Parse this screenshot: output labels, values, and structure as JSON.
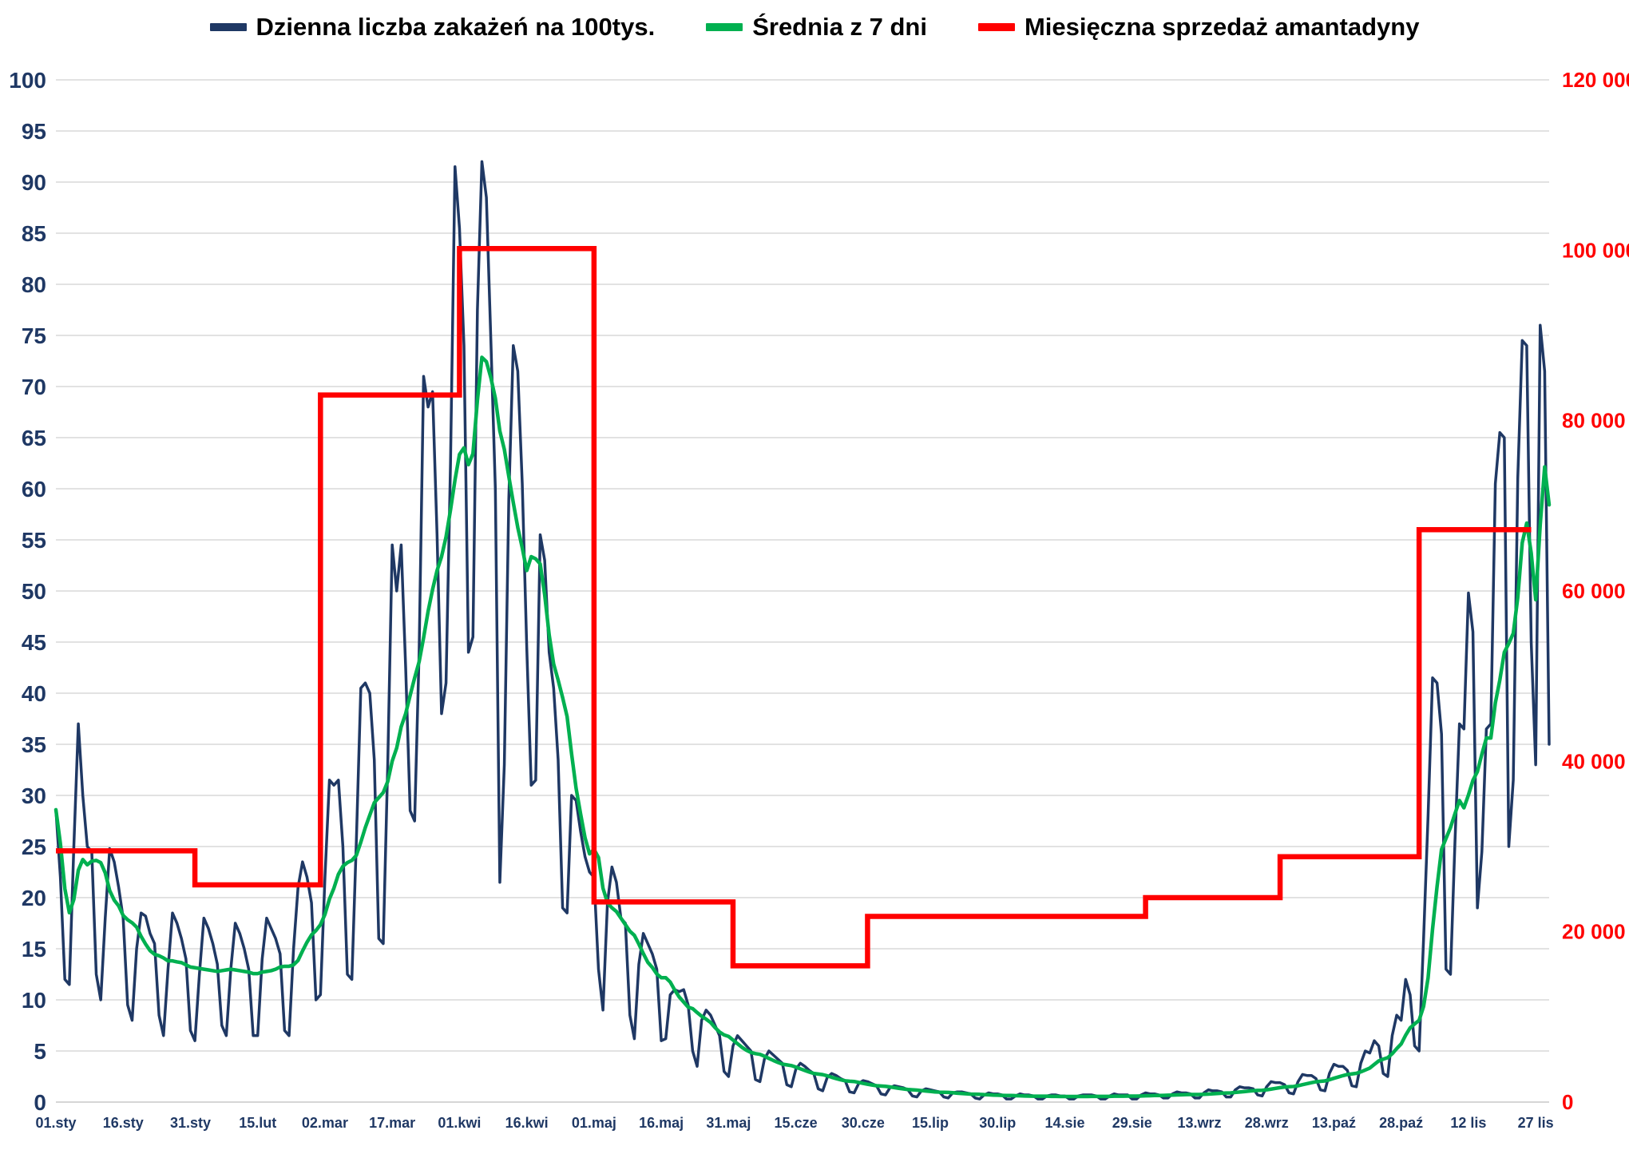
{
  "legend": {
    "items": [
      {
        "label": "Dzienna liczba zakażeń na 100tys.",
        "color": "#1f3864"
      },
      {
        "label": "Średnia z 7 dni",
        "color": "#00b050"
      },
      {
        "label": "Miesięczna sprzedaż amantadyny",
        "color": "#ff0000"
      }
    ]
  },
  "chart_data": {
    "type": "line",
    "title": "",
    "grid": true,
    "background": "#ffffff",
    "gridline_color": "#d9d9d9",
    "left_axis": {
      "min": 0,
      "max": 100,
      "step": 5,
      "ticks": [
        0,
        5,
        10,
        15,
        20,
        25,
        30,
        35,
        40,
        45,
        50,
        55,
        60,
        65,
        70,
        75,
        80,
        85,
        90,
        95,
        100
      ],
      "color": "#1f3864"
    },
    "right_axis": {
      "min": 0,
      "max": 120000,
      "step": 20000,
      "ticks": [
        {
          "value": 0,
          "label": "0"
        },
        {
          "value": 20000,
          "label": "20 000"
        },
        {
          "value": 40000,
          "label": "40 000"
        },
        {
          "value": 60000,
          "label": "60 000"
        },
        {
          "value": 80000,
          "label": "80 000"
        },
        {
          "value": 100000,
          "label": "100 000"
        },
        {
          "value": 120000,
          "label": "120 000"
        }
      ],
      "color": "#ff0000"
    },
    "x_axis": {
      "labels": [
        "01.sty",
        "16.sty",
        "31.sty",
        "15.lut",
        "02.mar",
        "17.mar",
        "01.kwi",
        "16.kwi",
        "01.maj",
        "16.maj",
        "31.maj",
        "15.cze",
        "30.cze",
        "15.lip",
        "30.lip",
        "14.sie",
        "29.sie",
        "13.wrz",
        "28.wrz",
        "13.paź",
        "28.paź",
        "12 lis",
        "27 lis"
      ],
      "days": [
        1,
        16,
        31,
        46,
        61,
        76,
        91,
        106,
        121,
        136,
        151,
        166,
        181,
        196,
        211,
        226,
        241,
        256,
        271,
        286,
        301,
        316,
        331
      ],
      "color": "#1f3864"
    },
    "series": [
      {
        "name": "Dzienna liczba zakażeń na 100tys.",
        "axis": "left",
        "color": "#1f3864",
        "kind": "daily-line",
        "values": [
          28.6,
          22.0,
          12.0,
          11.5,
          25.0,
          37.0,
          30.0,
          25.0,
          24.5,
          12.5,
          10.0,
          18.0,
          24.8,
          23.5,
          21.0,
          18.0,
          9.5,
          8.0,
          15.0,
          18.5,
          18.2,
          16.5,
          15.5,
          8.5,
          6.5,
          13.0,
          18.5,
          17.5,
          16.0,
          14.0,
          7.0,
          6.0,
          12.5,
          18.0,
          17.0,
          15.5,
          13.5,
          7.5,
          6.5,
          13.0,
          17.5,
          16.5,
          15.0,
          13.0,
          6.5,
          6.5,
          14.0,
          18.0,
          17.0,
          16.0,
          14.5,
          7.0,
          6.5,
          15.0,
          21.0,
          23.5,
          22.0,
          19.5,
          10.0,
          10.5,
          22.0,
          31.5,
          31.0,
          31.5,
          25.0,
          12.5,
          12.0,
          25.5,
          40.5,
          41.0,
          40.0,
          33.5,
          16.0,
          15.5,
          33.0,
          54.5,
          50.0,
          54.5,
          42.5,
          28.5,
          27.5,
          44.0,
          71.0,
          68.0,
          69.5,
          55.5,
          38.0,
          41.0,
          62.5,
          91.5,
          85.5,
          74.0,
          44.0,
          45.5,
          77.5,
          92.0,
          88.5,
          74.5,
          60.0,
          21.5,
          33.0,
          59.0,
          74.0,
          71.5,
          60.5,
          44.5,
          31.0,
          31.5,
          55.5,
          53.0,
          44.0,
          40.5,
          33.5,
          19.0,
          18.5,
          30.0,
          29.5,
          26.5,
          24.0,
          22.5,
          22.0,
          13.0,
          9.0,
          19.5,
          23.0,
          21.5,
          18.0,
          17.5,
          8.5,
          6.2,
          13.5,
          16.5,
          15.5,
          14.5,
          13.0,
          6.0,
          6.2,
          10.5,
          11.0,
          10.8,
          11.0,
          9.5,
          5.0,
          3.5,
          8.0,
          9.0,
          8.5,
          7.5,
          6.5,
          3.0,
          2.5,
          5.5,
          6.5,
          6.0,
          5.5,
          5.0,
          2.2,
          2.0,
          4.2,
          5.0,
          4.6,
          4.2,
          3.8,
          1.7,
          1.5,
          3.2,
          3.8,
          3.5,
          3.1,
          2.8,
          1.3,
          1.1,
          2.4,
          2.8,
          2.6,
          2.3,
          2.1,
          1.0,
          0.9,
          1.8,
          2.1,
          2.0,
          1.8,
          1.6,
          0.8,
          0.7,
          1.4,
          1.6,
          1.5,
          1.4,
          1.2,
          0.6,
          0.5,
          1.1,
          1.3,
          1.2,
          1.1,
          1.0,
          0.5,
          0.4,
          0.9,
          1.0,
          1.0,
          0.9,
          0.8,
          0.4,
          0.3,
          0.7,
          0.9,
          0.8,
          0.8,
          0.7,
          0.3,
          0.3,
          0.6,
          0.8,
          0.7,
          0.7,
          0.6,
          0.3,
          0.3,
          0.6,
          0.7,
          0.7,
          0.6,
          0.6,
          0.3,
          0.3,
          0.6,
          0.7,
          0.7,
          0.7,
          0.6,
          0.3,
          0.3,
          0.6,
          0.8,
          0.7,
          0.7,
          0.7,
          0.3,
          0.3,
          0.7,
          0.9,
          0.8,
          0.8,
          0.7,
          0.4,
          0.4,
          0.8,
          1.0,
          0.9,
          0.9,
          0.8,
          0.4,
          0.4,
          0.9,
          1.2,
          1.1,
          1.1,
          1.0,
          0.5,
          0.5,
          1.2,
          1.5,
          1.4,
          1.4,
          1.3,
          0.7,
          0.6,
          1.5,
          2.0,
          1.9,
          1.9,
          1.7,
          0.9,
          0.8,
          2.0,
          2.7,
          2.6,
          2.6,
          2.3,
          1.2,
          1.1,
          2.8,
          3.7,
          3.5,
          3.5,
          3.1,
          1.6,
          1.5,
          3.8,
          5.0,
          4.8,
          6.0,
          5.5,
          2.8,
          2.5,
          6.5,
          8.5,
          8.0,
          12.0,
          10.5,
          5.5,
          5.0,
          16.0,
          28.0,
          41.5,
          41.0,
          36.0,
          13.0,
          12.5,
          25.5,
          37.0,
          36.5,
          49.8,
          46.0,
          19.0,
          24.5,
          36.5,
          37.0,
          60.5,
          65.5,
          65.0,
          25.0,
          31.5,
          61.0,
          74.5,
          74.0,
          45.0,
          33.0,
          76.0,
          71.5,
          35.0
        ]
      },
      {
        "name": "Średnia z 7 dni",
        "axis": "left",
        "color": "#00b050",
        "kind": "7day-average",
        "derived_from": "series 0 (trailing 7-day mean)"
      },
      {
        "name": "Miesięczna sprzedaż amantadyny",
        "axis": "right",
        "color": "#ff0000",
        "kind": "monthly-step",
        "months": [
          {
            "start_day": 1,
            "value": 29500
          },
          {
            "start_day": 32,
            "value": 25500
          },
          {
            "start_day": 60,
            "value": 83000
          },
          {
            "start_day": 91,
            "value": 100200
          },
          {
            "start_day": 121,
            "value": 23500
          },
          {
            "start_day": 152,
            "value": 16000
          },
          {
            "start_day": 182,
            "value": 21800
          },
          {
            "start_day": 213,
            "value": 21800
          },
          {
            "start_day": 244,
            "value": 24000
          },
          {
            "start_day": 274,
            "value": 28800
          },
          {
            "start_day": 305,
            "value": 67200
          }
        ],
        "end_day": 330
      }
    ]
  }
}
